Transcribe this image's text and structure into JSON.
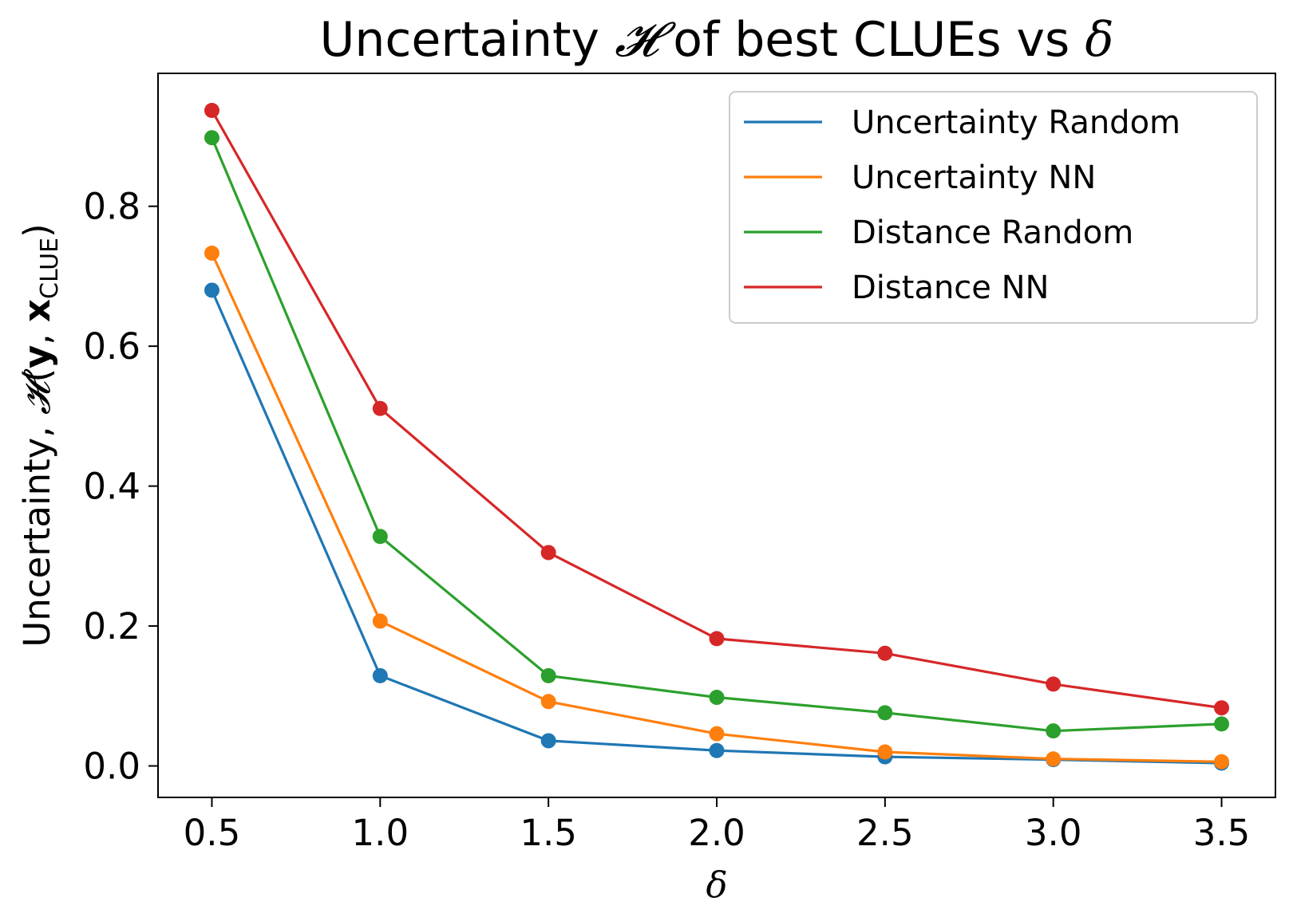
{
  "chart_data": {
    "type": "line",
    "title": {
      "prefix": "Uncertainty ",
      "symbol": "𝓗",
      "middle": " of best CLUEs vs ",
      "delta": "δ"
    },
    "xlabel": "δ",
    "ylabel": {
      "prefix": "Uncertainty, ",
      "symbol": "𝓗",
      "open": "(",
      "y": "y",
      "comma": ", ",
      "x": "x",
      "sub": "CLUE",
      "close": ")"
    },
    "x": [
      0.5,
      1.0,
      1.5,
      2.0,
      2.5,
      3.0,
      3.5
    ],
    "xticks": [
      "0.5",
      "1.0",
      "1.5",
      "2.0",
      "2.5",
      "3.0",
      "3.5"
    ],
    "yticks": [
      "0.0",
      "0.2",
      "0.4",
      "0.6",
      "0.8"
    ],
    "xlim": [
      0.34,
      3.66
    ],
    "ylim": [
      -0.045,
      0.99
    ],
    "grid": false,
    "legend_position": "top-right",
    "series": [
      {
        "name": "Uncertainty Random",
        "color": "#1f77b4",
        "values": [
          0.68,
          0.129,
          0.036,
          0.022,
          0.013,
          0.009,
          0.004
        ]
      },
      {
        "name": "Uncertainty NN",
        "color": "#ff7f0e",
        "values": [
          0.733,
          0.207,
          0.092,
          0.046,
          0.02,
          0.01,
          0.006
        ]
      },
      {
        "name": "Distance Random",
        "color": "#2ca02c",
        "values": [
          0.898,
          0.328,
          0.129,
          0.098,
          0.076,
          0.05,
          0.06
        ]
      },
      {
        "name": "Distance NN",
        "color": "#d62728",
        "values": [
          0.937,
          0.511,
          0.305,
          0.182,
          0.161,
          0.117,
          0.083
        ]
      }
    ]
  }
}
